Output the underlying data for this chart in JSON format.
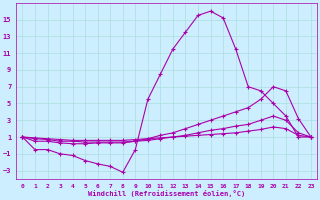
{
  "xlabel": "Windchill (Refroidissement éolien,°C)",
  "background_color": "#cceeff",
  "grid_color": "#aadddd",
  "line_color": "#aa00aa",
  "x": [
    0,
    1,
    2,
    3,
    4,
    5,
    6,
    7,
    8,
    9,
    10,
    11,
    12,
    13,
    14,
    15,
    16,
    17,
    18,
    19,
    20,
    21,
    22,
    23
  ],
  "line1": [
    1,
    -0.5,
    -0.5,
    -1.0,
    -1.2,
    -1.8,
    -2.2,
    -2.5,
    -3.2,
    -0.5,
    5.5,
    8.5,
    11.5,
    13.5,
    15.5,
    16.0,
    15.2,
    11.5,
    7.0,
    6.5,
    5.0,
    3.5,
    1.0,
    1.0
  ],
  "line2": [
    1,
    0.5,
    0.5,
    0.3,
    0.2,
    0.2,
    0.3,
    0.3,
    0.3,
    0.5,
    0.8,
    1.2,
    1.5,
    2.0,
    2.5,
    3.0,
    3.5,
    4.0,
    4.5,
    5.5,
    7.0,
    6.5,
    3.2,
    1.0
  ],
  "line3": [
    1,
    0.8,
    0.7,
    0.5,
    0.5,
    0.4,
    0.4,
    0.4,
    0.4,
    0.5,
    0.6,
    0.8,
    1.0,
    1.2,
    1.5,
    1.8,
    2.0,
    2.3,
    2.5,
    3.0,
    3.5,
    3.0,
    1.5,
    1.0
  ],
  "line4": [
    1,
    0.9,
    0.8,
    0.7,
    0.6,
    0.6,
    0.6,
    0.6,
    0.6,
    0.7,
    0.8,
    0.9,
    1.0,
    1.1,
    1.2,
    1.3,
    1.4,
    1.5,
    1.7,
    1.9,
    2.2,
    2.0,
    1.2,
    1.0
  ],
  "ylim": [
    -4,
    17
  ],
  "xlim": [
    -0.5,
    23.5
  ],
  "yticks": [
    -3,
    -1,
    1,
    3,
    5,
    7,
    9,
    11,
    13,
    15
  ],
  "xticks": [
    0,
    1,
    2,
    3,
    4,
    5,
    6,
    7,
    8,
    9,
    10,
    11,
    12,
    13,
    14,
    15,
    16,
    17,
    18,
    19,
    20,
    21,
    22,
    23
  ]
}
